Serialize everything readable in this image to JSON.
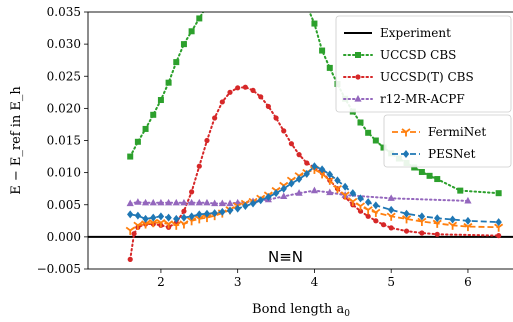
{
  "chart_data": {
    "type": "line",
    "xlabel_text": "Bond length a",
    "xlabel_sub": "0",
    "ylabel": "E − E_ref in E_h",
    "xlim": [
      1.05,
      6.6
    ],
    "ylim": [
      -0.005,
      0.035
    ],
    "xticks": [
      2,
      3,
      4,
      5,
      6
    ],
    "yticks": [
      -0.005,
      0.0,
      0.005,
      0.01,
      0.015,
      0.02,
      0.025,
      0.03,
      0.035
    ],
    "ytick_labels": [
      "−0.005",
      "0.000",
      "0.005",
      "0.010",
      "0.015",
      "0.020",
      "0.025",
      "0.030",
      "0.035"
    ],
    "annotation": "N≡N",
    "legend_top": [
      "Experiment",
      "UCCSD CBS",
      "UCCSD(T) CBS",
      "r12-MR-ACPF"
    ],
    "legend_bottom": [
      "FermiNet",
      "PESNet"
    ],
    "series": [
      {
        "name": "Experiment",
        "color": "#000000",
        "marker": "none",
        "dash": "",
        "x": [
          1.05,
          6.6
        ],
        "y": [
          0.0,
          0.0
        ]
      },
      {
        "name": "UCCSD CBS",
        "color": "#2ca02c",
        "marker": "square",
        "dash": "dotted",
        "x": [
          1.6,
          1.7,
          1.8,
          1.9,
          2.0,
          2.1,
          2.2,
          2.3,
          2.4,
          2.5,
          2.6,
          3.9,
          4.0,
          4.1,
          4.2,
          4.3,
          4.4,
          4.5,
          4.6,
          4.7,
          4.8,
          4.9,
          5.0,
          5.1,
          5.2,
          5.3,
          5.4,
          5.5,
          5.6,
          5.9,
          6.4
        ],
        "y": [
          0.0125,
          0.0148,
          0.0168,
          0.019,
          0.0213,
          0.024,
          0.0272,
          0.03,
          0.032,
          0.034,
          0.036,
          0.036,
          0.0332,
          0.029,
          0.0263,
          0.0238,
          0.0215,
          0.0195,
          0.0178,
          0.0162,
          0.015,
          0.0139,
          0.013,
          0.0122,
          0.0115,
          0.0108,
          0.0101,
          0.0095,
          0.009,
          0.0072,
          0.0068
        ]
      },
      {
        "name": "UCCSD(T) CBS",
        "color": "#d62728",
        "marker": "circle",
        "dash": "dotted",
        "x": [
          1.6,
          1.65,
          1.7,
          1.8,
          1.9,
          2.0,
          2.1,
          2.2,
          2.3,
          2.4,
          2.5,
          2.6,
          2.7,
          2.8,
          2.9,
          3.0,
          3.1,
          3.2,
          3.3,
          3.4,
          3.5,
          3.6,
          3.7,
          3.8,
          3.9,
          4.0,
          4.1,
          4.2,
          4.3,
          4.4,
          4.5,
          4.6,
          4.7,
          4.8,
          4.9,
          5.0,
          5.2,
          5.4,
          5.6,
          6.4
        ],
        "y": [
          -0.0035,
          0.0005,
          0.0015,
          0.002,
          0.002,
          0.0018,
          0.0015,
          0.0022,
          0.004,
          0.007,
          0.011,
          0.015,
          0.0185,
          0.021,
          0.0225,
          0.0232,
          0.0233,
          0.0228,
          0.0218,
          0.0203,
          0.0185,
          0.0165,
          0.0145,
          0.0128,
          0.0115,
          0.0108,
          0.01,
          0.0088,
          0.0075,
          0.0062,
          0.005,
          0.004,
          0.0032,
          0.0025,
          0.0019,
          0.0014,
          0.0009,
          0.0006,
          0.0004,
          0.0002
        ]
      },
      {
        "name": "r12-MR-ACPF",
        "color": "#9467bd",
        "marker": "triangle",
        "dash": "dotted",
        "x": [
          1.6,
          1.7,
          1.8,
          1.9,
          2.0,
          2.1,
          2.2,
          2.3,
          2.4,
          2.5,
          2.6,
          2.7,
          2.8,
          2.9,
          3.0,
          3.2,
          3.4,
          3.6,
          3.8,
          4.0,
          4.2,
          4.4,
          5.0,
          6.0
        ],
        "y": [
          0.0052,
          0.0054,
          0.0053,
          0.0053,
          0.0053,
          0.0053,
          0.0053,
          0.0053,
          0.0053,
          0.0053,
          0.0053,
          0.0052,
          0.0052,
          0.0052,
          0.0053,
          0.0055,
          0.0058,
          0.0063,
          0.0068,
          0.0072,
          0.0069,
          0.0065,
          0.006,
          0.0056
        ]
      },
      {
        "name": "FermiNet",
        "color": "#ff7f0e",
        "marker": "tri_down",
        "dash": "dashed",
        "x": [
          1.6,
          1.7,
          1.8,
          1.9,
          2.0,
          2.1,
          2.2,
          2.3,
          2.4,
          2.5,
          2.6,
          2.7,
          2.8,
          2.9,
          3.0,
          3.1,
          3.2,
          3.3,
          3.4,
          3.5,
          3.6,
          3.7,
          3.8,
          3.9,
          4.0,
          4.1,
          4.2,
          4.3,
          4.4,
          4.5,
          4.6,
          4.7,
          4.8,
          5.0,
          5.2,
          5.4,
          5.6,
          5.8,
          6.0,
          6.4
        ],
        "y": [
          0.001,
          0.0018,
          0.002,
          0.0022,
          0.0022,
          0.002,
          0.0018,
          0.002,
          0.0025,
          0.0028,
          0.003,
          0.0033,
          0.0037,
          0.0042,
          0.0048,
          0.0052,
          0.0055,
          0.006,
          0.0065,
          0.0072,
          0.008,
          0.0088,
          0.0095,
          0.01,
          0.0105,
          0.0098,
          0.0088,
          0.0075,
          0.0065,
          0.0055,
          0.0048,
          0.0042,
          0.0038,
          0.0032,
          0.0028,
          0.0024,
          0.0021,
          0.0018,
          0.0016,
          0.0015
        ]
      },
      {
        "name": "PESNet",
        "color": "#1f77b4",
        "marker": "diamond",
        "dash": "dashed",
        "x": [
          1.6,
          1.7,
          1.8,
          1.9,
          2.0,
          2.1,
          2.2,
          2.3,
          2.4,
          2.5,
          2.6,
          2.7,
          2.8,
          2.9,
          3.0,
          3.1,
          3.2,
          3.3,
          3.4,
          3.5,
          3.6,
          3.7,
          3.8,
          3.9,
          4.0,
          4.1,
          4.2,
          4.3,
          4.4,
          4.5,
          4.6,
          4.7,
          4.8,
          5.0,
          5.2,
          5.4,
          5.6,
          5.8,
          6.0,
          6.4
        ],
        "y": [
          0.0035,
          0.0033,
          0.0028,
          0.003,
          0.0032,
          0.003,
          0.0028,
          0.003,
          0.0032,
          0.0035,
          0.0036,
          0.0037,
          0.0039,
          0.0041,
          0.0044,
          0.0048,
          0.0052,
          0.0057,
          0.0062,
          0.0068,
          0.0075,
          0.0083,
          0.009,
          0.0098,
          0.011,
          0.0105,
          0.0097,
          0.0088,
          0.0078,
          0.0068,
          0.006,
          0.0054,
          0.0049,
          0.0042,
          0.0036,
          0.0032,
          0.0029,
          0.0027,
          0.0025,
          0.0023
        ]
      }
    ]
  }
}
